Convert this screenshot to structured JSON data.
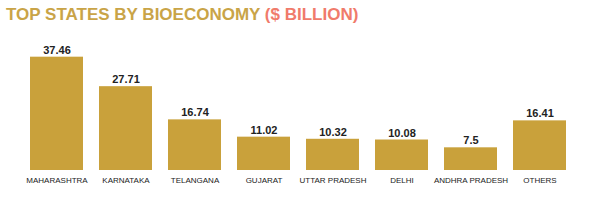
{
  "chart_data": {
    "type": "bar",
    "title": "TOP STATES BY BIOECONOMY ($ BILLION)",
    "categories": [
      "MAHARASHTRA",
      "KARNATAKA",
      "TELANGANA",
      "GUJARAT",
      "UTTAR PRADESH",
      "DELHI",
      "ANDHRA PRADESH",
      "OTHERS"
    ],
    "values": [
      37.46,
      27.71,
      16.74,
      11.02,
      10.32,
      10.08,
      7.5,
      16.41
    ],
    "color": "#c9a13b",
    "ylim": [
      0,
      40
    ],
    "data_labels": true,
    "tick_labels": "x",
    "grid": false
  }
}
